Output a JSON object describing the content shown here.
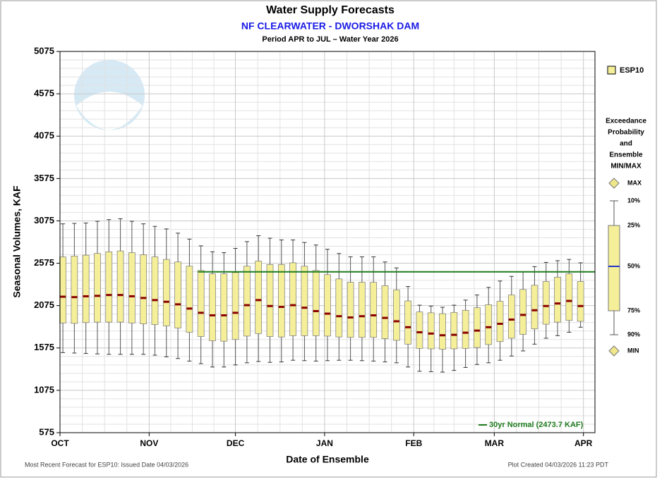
{
  "chart_data": {
    "type": "box",
    "title": "Water Supply Forecasts",
    "subtitle": "NF CLEARWATER - DWORSHAK DAM",
    "period": "Period  APR to JUL  –  Water Year 2026",
    "y_label": "Seasonal Volumes, KAF",
    "x_label": "Date of Ensemble",
    "footer_left": "Most Recent Forecast for ESP10: Issued Date 04/03/2026",
    "footer_right": "Plot Created  04/03/2026 11:23 PDT",
    "ylim": [
      575,
      5075
    ],
    "yticks": [
      575,
      1075,
      1575,
      2075,
      2575,
      3075,
      3575,
      4075,
      4575,
      5075
    ],
    "xlim": [
      0,
      186
    ],
    "xticks": [
      {
        "value": 0,
        "label": "OCT"
      },
      {
        "value": 31,
        "label": "NOV"
      },
      {
        "value": 61,
        "label": "DEC"
      },
      {
        "value": 92,
        "label": "JAN"
      },
      {
        "value": 123,
        "label": "FEB"
      },
      {
        "value": 151,
        "label": "MAR"
      },
      {
        "value": 182,
        "label": "APR"
      }
    ],
    "grid": true,
    "normal": {
      "label": "30yr Normal (2473.7 KAF)",
      "value": 2473.7,
      "color": "#1e7b1e",
      "x_start": 48
    },
    "series": [
      {
        "name": "ESP10",
        "color": "#f5ef9a",
        "median_color": "#8b0000",
        "x": [
          1,
          5,
          9,
          13,
          17,
          21,
          25,
          29,
          33,
          37,
          41,
          45,
          49,
          53,
          57,
          61,
          65,
          69,
          73,
          77,
          81,
          85,
          89,
          93,
          97,
          101,
          105,
          109,
          113,
          117,
          121,
          125,
          129,
          133,
          137,
          141,
          145,
          149,
          153,
          157,
          161,
          165,
          169,
          173,
          177,
          181
        ],
        "p10": [
          1520,
          1515,
          1510,
          1505,
          1500,
          1500,
          1500,
          1500,
          1490,
          1470,
          1450,
          1420,
          1390,
          1350,
          1350,
          1375,
          1400,
          1415,
          1405,
          1410,
          1430,
          1425,
          1420,
          1425,
          1430,
          1430,
          1425,
          1420,
          1410,
          1400,
          1350,
          1300,
          1295,
          1290,
          1310,
          1345,
          1380,
          1400,
          1430,
          1480,
          1540,
          1620,
          1690,
          1720,
          1760,
          1820
        ],
        "p25": [
          1870,
          1865,
          1875,
          1880,
          1880,
          1880,
          1870,
          1860,
          1850,
          1835,
          1810,
          1760,
          1710,
          1660,
          1655,
          1675,
          1715,
          1745,
          1710,
          1705,
          1720,
          1720,
          1720,
          1715,
          1705,
          1700,
          1700,
          1700,
          1685,
          1665,
          1620,
          1570,
          1565,
          1560,
          1565,
          1570,
          1580,
          1615,
          1650,
          1690,
          1735,
          1800,
          1855,
          1880,
          1900,
          1890
        ],
        "median": [
          2180,
          2175,
          2185,
          2190,
          2200,
          2200,
          2185,
          2165,
          2140,
          2120,
          2090,
          2040,
          1990,
          1960,
          1960,
          1990,
          2080,
          2140,
          2070,
          2060,
          2080,
          2050,
          2010,
          1980,
          1950,
          1935,
          1950,
          1960,
          1930,
          1890,
          1820,
          1760,
          1745,
          1725,
          1730,
          1755,
          1780,
          1820,
          1860,
          1910,
          1965,
          2020,
          2070,
          2100,
          2130,
          2070
        ],
        "p75": [
          2650,
          2660,
          2670,
          2690,
          2710,
          2720,
          2700,
          2675,
          2650,
          2620,
          2590,
          2540,
          2490,
          2450,
          2450,
          2465,
          2540,
          2600,
          2560,
          2560,
          2580,
          2540,
          2490,
          2440,
          2390,
          2350,
          2350,
          2350,
          2310,
          2260,
          2130,
          2000,
          1990,
          1980,
          1995,
          2020,
          2050,
          2085,
          2125,
          2200,
          2265,
          2315,
          2360,
          2410,
          2450,
          2360
        ],
        "p90": [
          3040,
          3045,
          3050,
          3070,
          3090,
          3100,
          3070,
          3040,
          3010,
          2980,
          2930,
          2860,
          2780,
          2710,
          2700,
          2750,
          2830,
          2900,
          2870,
          2850,
          2850,
          2820,
          2790,
          2740,
          2690,
          2650,
          2650,
          2650,
          2590,
          2520,
          2300,
          2080,
          2070,
          2055,
          2080,
          2140,
          2200,
          2290,
          2365,
          2420,
          2475,
          2535,
          2585,
          2605,
          2620,
          2580
        ]
      }
    ],
    "legend": {
      "title_lines": [
        "Exceedance",
        "Probability",
        "and",
        "Ensemble",
        "MIN/MAX"
      ],
      "labels": [
        "MAX",
        "10%",
        "25%",
        "50%",
        "75%",
        "90%",
        "MIN"
      ]
    }
  }
}
